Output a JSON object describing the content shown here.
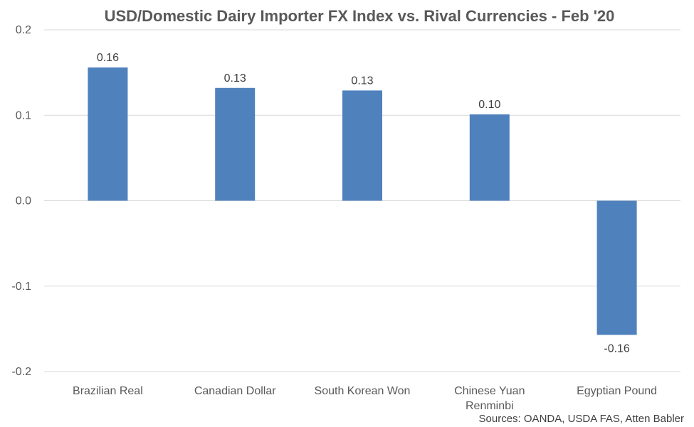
{
  "chart_data": {
    "type": "bar",
    "title": "USD/Domestic Dairy Importer FX Index vs. Rival Currencies - Feb '20",
    "xlabel": "",
    "ylabel": "",
    "categories": [
      "Brazilian Real",
      "Canadian Dollar",
      "South Korean Won",
      "Chinese Yuan Renminbi",
      "Egyptian Pound"
    ],
    "values": [
      0.156,
      0.132,
      0.129,
      0.101,
      -0.157
    ],
    "data_labels": [
      "0.16",
      "0.13",
      "0.13",
      "0.10",
      "-0.16"
    ],
    "ylim": [
      -0.2,
      0.2
    ],
    "yticks": [
      0.2,
      0.1,
      0.0,
      -0.1,
      -0.2
    ],
    "ytick_labels": [
      "0.2",
      "0.1",
      "0.0",
      "-0.1",
      "-0.2"
    ],
    "grid": true,
    "legend": "none",
    "bar_color": "#4f81bd",
    "source": "Sources: OANDA, USDA FAS, Atten Babler"
  }
}
